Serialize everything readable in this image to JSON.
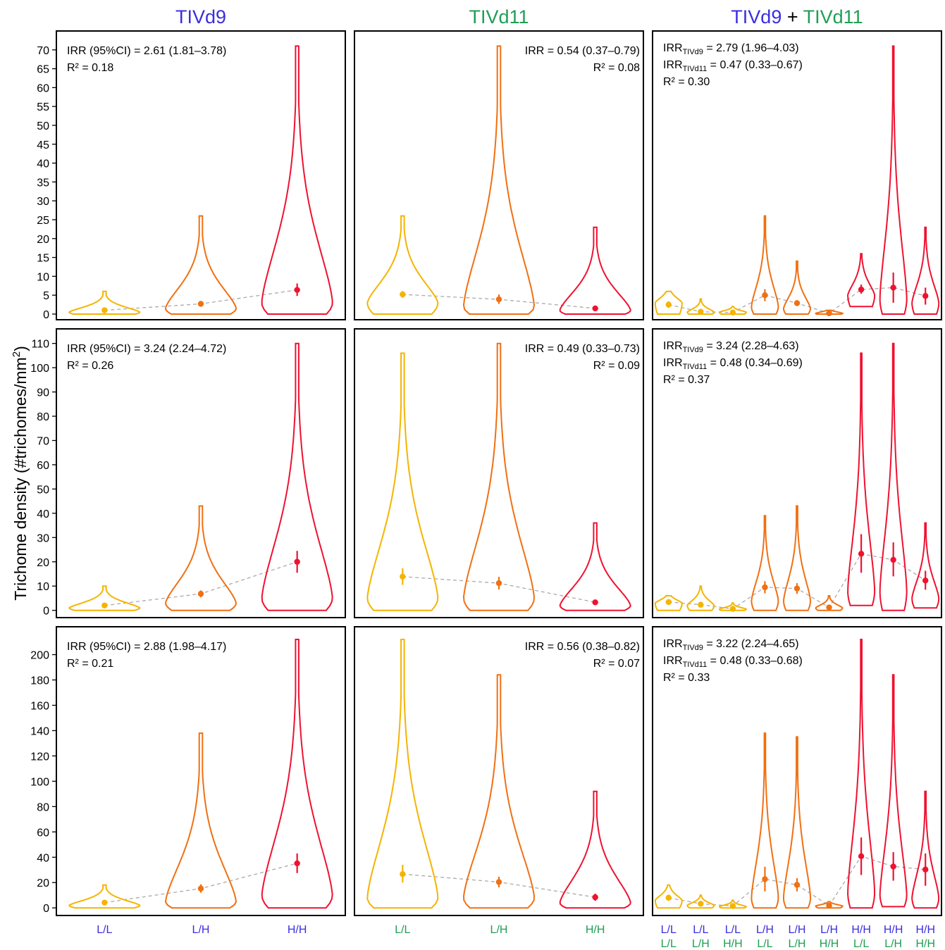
{
  "figure": {
    "ylabel": "Trichome density (#trichomes/mm",
    "ylabel_sup": "2",
    "ylabel_close": ")",
    "col_titles": [
      {
        "parts": [
          {
            "text": "TIVd9",
            "color": "#3b2ee0"
          }
        ]
      },
      {
        "parts": [
          {
            "text": "TIVd11",
            "color": "#1f9e55"
          }
        ]
      },
      {
        "parts": [
          {
            "text": "TIVd9",
            "color": "#3b2ee0"
          },
          {
            "text": " + ",
            "color": "#000000"
          },
          {
            "text": "TIVd11",
            "color": "#1f9e55"
          }
        ]
      }
    ],
    "x_labels": {
      "col1": [
        "L/L",
        "L/H",
        "H/H"
      ],
      "col2": [
        "L/L",
        "L/H",
        "H/H"
      ],
      "col3_top": [
        "L/L",
        "L/L",
        "L/L",
        "L/H",
        "L/H",
        "L/H",
        "H/H",
        "H/H",
        "H/H"
      ],
      "col3_bottom": [
        "L/L",
        "L/H",
        "H/H",
        "L/L",
        "L/H",
        "H/H",
        "L/L",
        "L/H",
        "H/H"
      ]
    },
    "colors": {
      "L/L": "#f5b400",
      "L/H": "#f07012",
      "H/H": "#ef1230",
      "blue": "#3b2ee0",
      "green": "#1f9e55",
      "trend": "#aaaaaa"
    }
  },
  "rows": [
    {
      "ylim": [
        -1.5,
        75
      ],
      "ticks": [
        0,
        5,
        10,
        15,
        20,
        25,
        30,
        35,
        40,
        45,
        50,
        55,
        60,
        65,
        70
      ],
      "ann": [
        [
          "IRR (95%CI) = 2.61 (1.81–3.78)",
          "R² = 0.18"
        ],
        [
          "IRR = 0.54 (0.37–0.79)",
          "R² = 0.08"
        ],
        [
          {
            "sub": "TIVd9",
            "rest": " = 2.79 (1.96–4.03)"
          },
          {
            "sub": "TIVd11",
            "rest": " = 0.47 (0.33–0.67)"
          },
          "R² = 0.30"
        ]
      ]
    },
    {
      "ylim": [
        -3,
        116
      ],
      "ticks": [
        0,
        10,
        20,
        30,
        40,
        50,
        60,
        70,
        80,
        90,
        100,
        110
      ],
      "ann": [
        [
          "IRR (95%CI) = 3.24 (2.24–4.72)",
          "R² = 0.26"
        ],
        [
          "IRR = 0.49 (0.33–0.73)",
          "R² = 0.09"
        ],
        [
          {
            "sub": "TIVd9",
            "rest": " = 3.24 (2.28–4.63)"
          },
          {
            "sub": "TIVd11",
            "rest": " = 0.48 (0.34–0.69)"
          },
          "R² = 0.37"
        ]
      ]
    },
    {
      "ylim": [
        -6,
        222
      ],
      "ticks": [
        0,
        20,
        40,
        60,
        80,
        100,
        120,
        140,
        160,
        180,
        200
      ],
      "ann": [
        [
          "IRR (95%CI) = 2.88 (1.98–4.17)",
          "R² = 0.21"
        ],
        [
          "IRR = 0.56 (0.38–0.82)",
          "R² = 0.07"
        ],
        [
          {
            "sub": "TIVd9",
            "rest": " = 3.22 (2.24–4.65)"
          },
          {
            "sub": "TIVd11",
            "rest": " = 0.48 (0.33–0.68)"
          },
          "R² = 0.33"
        ]
      ]
    }
  ],
  "chart_data": {
    "type": "violin",
    "panels": [
      {
        "row": 1,
        "col": 1,
        "groups": [
          {
            "label": "L/L",
            "color": "L/L",
            "max": 6,
            "min": 0,
            "mode": 0.5,
            "mean": 1,
            "ci": [
              0.6,
              1.4
            ]
          },
          {
            "label": "L/H",
            "color": "L/H",
            "max": 26,
            "min": 0,
            "mode": 1.5,
            "mean": 2.7,
            "ci": [
              2.1,
              3.3
            ]
          },
          {
            "label": "H/H",
            "color": "H/H",
            "max": 71,
            "min": 0,
            "mode": 3,
            "mean": 6.4,
            "ci": [
              4.8,
              8.1
            ]
          }
        ]
      },
      {
        "row": 1,
        "col": 2,
        "groups": [
          {
            "label": "L/L",
            "color": "L/L",
            "max": 26,
            "min": 0,
            "mode": 3,
            "mean": 5.2,
            "ci": [
              4.3,
              6.1
            ]
          },
          {
            "label": "L/H",
            "color": "L/H",
            "max": 71,
            "min": 0,
            "mode": 2,
            "mean": 3.9,
            "ci": [
              2.7,
              5.2
            ]
          },
          {
            "label": "H/H",
            "color": "H/H",
            "max": 23,
            "min": 0,
            "mode": 1,
            "mean": 1.5,
            "ci": [
              0.9,
              2.0
            ]
          }
        ]
      },
      {
        "row": 1,
        "col": 3,
        "groups": [
          {
            "label": "L/L L/L",
            "color": "L/L",
            "max": 6,
            "min": 0,
            "mode": 3,
            "mean": 2.5,
            "ci": [
              1.6,
              3.4
            ]
          },
          {
            "label": "L/L L/H",
            "color": "L/L",
            "max": 4,
            "min": 0,
            "mode": 0.5,
            "mean": 0.6,
            "ci": [
              0.2,
              1.0
            ]
          },
          {
            "label": "L/L H/H",
            "color": "L/L",
            "max": 2,
            "min": 0,
            "mode": 0.5,
            "mean": 0.4,
            "ci": [
              0.1,
              0.7
            ]
          },
          {
            "label": "L/H L/L",
            "color": "L/H",
            "max": 26,
            "min": 0,
            "mode": 2,
            "mean": 5,
            "ci": [
              3.4,
              6.6
            ]
          },
          {
            "label": "L/H L/H",
            "color": "L/H",
            "max": 14,
            "min": 0,
            "mode": 1.5,
            "mean": 2.9,
            "ci": [
              2.1,
              3.7
            ]
          },
          {
            "label": "L/H H/H",
            "color": "L/H",
            "max": 1,
            "min": 0,
            "mode": 0.2,
            "mean": 0.2,
            "ci": [
              0,
              0.5
            ]
          },
          {
            "label": "H/H L/L",
            "color": "H/H",
            "max": 16,
            "min": 2,
            "mode": 5,
            "mean": 6.5,
            "ci": [
              5.4,
              7.8
            ]
          },
          {
            "label": "H/H L/H",
            "color": "H/H",
            "max": 71,
            "min": 0,
            "mode": 4,
            "mean": 7,
            "ci": [
              3,
              11
            ]
          },
          {
            "label": "H/H H/H",
            "color": "H/H",
            "max": 23,
            "min": 0,
            "mode": 3,
            "mean": 4.8,
            "ci": [
              2.5,
              7
            ]
          }
        ]
      },
      {
        "row": 2,
        "col": 1,
        "groups": [
          {
            "label": "L/L",
            "color": "L/L",
            "max": 10,
            "min": 0,
            "mode": 1,
            "mean": 2,
            "ci": [
              1.3,
              2.7
            ]
          },
          {
            "label": "L/H",
            "color": "L/H",
            "max": 43,
            "min": 0,
            "mode": 3,
            "mean": 6.8,
            "ci": [
              5.4,
              8.2
            ]
          },
          {
            "label": "H/H",
            "color": "H/H",
            "max": 110,
            "min": 0,
            "mode": 5,
            "mean": 20,
            "ci": [
              15.5,
              24.5
            ]
          }
        ]
      },
      {
        "row": 2,
        "col": 2,
        "groups": [
          {
            "label": "L/L",
            "color": "L/L",
            "max": 106,
            "min": 0,
            "mode": 5,
            "mean": 13.9,
            "ci": [
              10.5,
              17.3
            ]
          },
          {
            "label": "L/H",
            "color": "L/H",
            "max": 110,
            "min": 0,
            "mode": 5,
            "mean": 11.2,
            "ci": [
              8.6,
              13.8
            ]
          },
          {
            "label": "H/H",
            "color": "H/H",
            "max": 36,
            "min": 0,
            "mode": 2,
            "mean": 3.3,
            "ci": [
              2.3,
              4.3
            ]
          }
        ]
      },
      {
        "row": 2,
        "col": 3,
        "groups": [
          {
            "label": "L/L L/L",
            "color": "L/L",
            "max": 6,
            "min": 0,
            "mode": 3,
            "mean": 3.4,
            "ci": [
              2.5,
              4.3
            ]
          },
          {
            "label": "L/L L/H",
            "color": "L/L",
            "max": 10,
            "min": 0,
            "mode": 2,
            "mean": 2.3,
            "ci": [
              1.3,
              3.3
            ]
          },
          {
            "label": "L/L H/H",
            "color": "L/L",
            "max": 3,
            "min": 0,
            "mode": 0.5,
            "mean": 0.6,
            "ci": [
              0.2,
              1
            ]
          },
          {
            "label": "L/H L/L",
            "color": "L/H",
            "max": 39,
            "min": 0,
            "mode": 4,
            "mean": 9.5,
            "ci": [
              7,
              12
            ]
          },
          {
            "label": "L/H L/H",
            "color": "L/H",
            "max": 43,
            "min": 0,
            "mode": 4,
            "mean": 9,
            "ci": [
              6.8,
              11.2
            ]
          },
          {
            "label": "L/H H/H",
            "color": "L/H",
            "max": 6,
            "min": 0,
            "mode": 1,
            "mean": 1.2,
            "ci": [
              0.5,
              1.9
            ]
          },
          {
            "label": "H/H L/L",
            "color": "H/H",
            "max": 106,
            "min": 2,
            "mode": 8,
            "mean": 23.3,
            "ci": [
              15.5,
              31.4
            ]
          },
          {
            "label": "H/H L/H",
            "color": "H/H",
            "max": 110,
            "min": 0,
            "mode": 8,
            "mean": 20.8,
            "ci": [
              14,
              28
            ]
          },
          {
            "label": "H/H H/H",
            "color": "H/H",
            "max": 36,
            "min": 1,
            "mode": 5,
            "mean": 12.3,
            "ci": [
              8.5,
              16.3
            ]
          }
        ]
      },
      {
        "row": 3,
        "col": 1,
        "groups": [
          {
            "label": "L/L",
            "color": "L/L",
            "max": 18,
            "min": 0,
            "mode": 2,
            "mean": 4.2,
            "ci": [
              3,
              5.4
            ]
          },
          {
            "label": "L/H",
            "color": "L/H",
            "max": 138,
            "min": 0,
            "mode": 5,
            "mean": 15.3,
            "ci": [
              12,
              18.6
            ]
          },
          {
            "label": "H/H",
            "color": "H/H",
            "max": 212,
            "min": 0,
            "mode": 10,
            "mean": 35.2,
            "ci": [
              27.5,
              43
            ]
          }
        ]
      },
      {
        "row": 3,
        "col": 2,
        "groups": [
          {
            "label": "L/L",
            "color": "L/L",
            "max": 212,
            "min": 0,
            "mode": 8,
            "mean": 26.7,
            "ci": [
              20,
              34
            ]
          },
          {
            "label": "L/H",
            "color": "L/H",
            "max": 184,
            "min": 0,
            "mode": 8,
            "mean": 20.4,
            "ci": [
              16.2,
              24.6
            ]
          },
          {
            "label": "H/H",
            "color": "H/H",
            "max": 92,
            "min": 0,
            "mode": 4,
            "mean": 8.4,
            "ci": [
              5.6,
              11.2
            ]
          }
        ]
      },
      {
        "row": 3,
        "col": 3,
        "groups": [
          {
            "label": "L/L L/L",
            "color": "L/L",
            "max": 18,
            "min": 0,
            "mode": 6,
            "mean": 8,
            "ci": [
              5.5,
              10.5
            ]
          },
          {
            "label": "L/L L/H",
            "color": "L/L",
            "max": 10,
            "min": 0,
            "mode": 2,
            "mean": 3.3,
            "ci": [
              2,
              4.6
            ]
          },
          {
            "label": "L/L H/H",
            "color": "L/L",
            "max": 6,
            "min": 0,
            "mode": 1,
            "mean": 1.5,
            "ci": [
              0.5,
              2.5
            ]
          },
          {
            "label": "L/H L/L",
            "color": "L/H",
            "max": 138,
            "min": 0,
            "mode": 8,
            "mean": 22.7,
            "ci": [
              13,
              32.5
            ]
          },
          {
            "label": "L/H L/H",
            "color": "L/H",
            "max": 135,
            "min": 0,
            "mode": 8,
            "mean": 18.2,
            "ci": [
              13,
              23.5
            ]
          },
          {
            "label": "L/H H/H",
            "color": "L/H",
            "max": 5,
            "min": 0,
            "mode": 1.5,
            "mean": 1.8,
            "ci": [
              0.8,
              2.8
            ]
          },
          {
            "label": "H/H L/L",
            "color": "H/H",
            "max": 212,
            "min": 0,
            "mode": 12,
            "mean": 40.8,
            "ci": [
              26,
              55.6
            ]
          },
          {
            "label": "H/H L/H",
            "color": "H/H",
            "max": 184,
            "min": 1,
            "mode": 10,
            "mean": 32.7,
            "ci": [
              21.5,
              44
            ]
          },
          {
            "label": "H/H H/H",
            "color": "H/H",
            "max": 92,
            "min": 0,
            "mode": 8,
            "mean": 30.3,
            "ci": [
              17.5,
              43
            ]
          }
        ]
      }
    ]
  }
}
